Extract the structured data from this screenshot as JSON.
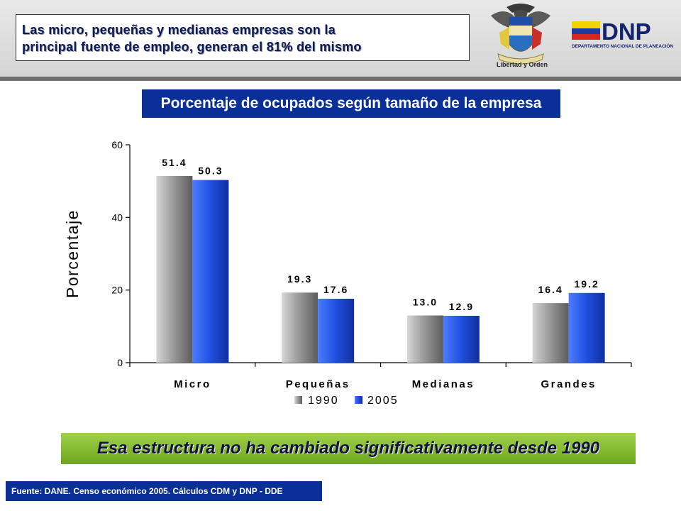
{
  "headline": {
    "line1": "Las micro, pequeñas y medianas empresas son la",
    "line2": "principal fuente de empleo, generan el 81% del mismo"
  },
  "logos": {
    "crest_motto": "Libertad y Orden",
    "dnp_name": "DNP",
    "dnp_full": "DEPARTAMENTO NACIONAL DE PLANEACIÓN"
  },
  "chart_title": "Porcentaje de ocupados según tamaño de la empresa",
  "conclusion": "Esa estructura no ha cambiado significativamente desde 1990",
  "source": "Fuente: DANE. Censo económico 2005. Cálculos CDM y DNP - DDE",
  "colors": {
    "series_1990": "#8a8a8a",
    "series_2005": "#1f4fe0",
    "title_bg": "#0a2f96",
    "conclusion_bg": "#8cc63f"
  },
  "chart_data": {
    "type": "bar",
    "title": "",
    "xlabel": "",
    "ylabel": "Porcentaje",
    "ylim": [
      0,
      60
    ],
    "yticks": [
      0,
      20,
      40,
      60
    ],
    "categories": [
      "Micro",
      "Pequeñas",
      "Medianas",
      "Grandes"
    ],
    "series": [
      {
        "name": "1990",
        "values": [
          51.4,
          19.3,
          13.0,
          16.4
        ],
        "labels": [
          "51.4",
          "19.3",
          "13.0",
          "16.4"
        ]
      },
      {
        "name": "2005",
        "values": [
          50.3,
          17.6,
          12.9,
          19.2
        ],
        "labels": [
          "50.3",
          "17.6",
          "12.9",
          "19.2"
        ]
      }
    ],
    "grid": false,
    "legend": "bottom"
  }
}
